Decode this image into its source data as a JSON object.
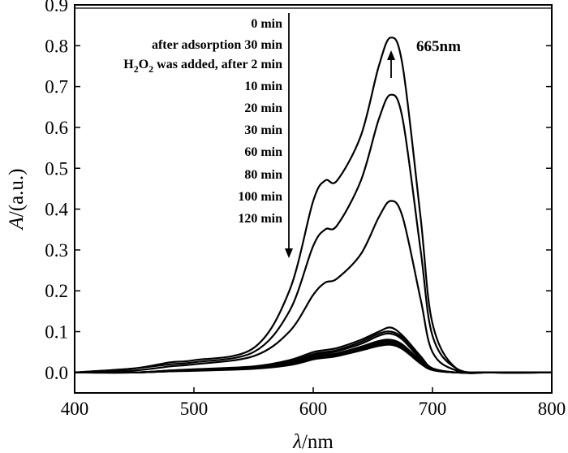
{
  "chart_data": {
    "type": "line",
    "xlabel": {
      "symbol": "λ",
      "unit": "/nm"
    },
    "ylabel": {
      "symbol": "A",
      "unit": "/(a.u.)"
    },
    "xlim": [
      400,
      800
    ],
    "ylim": [
      -0.05,
      0.9
    ],
    "x_ticks": [
      400,
      500,
      600,
      700,
      800
    ],
    "y_ticks": [
      0.0,
      0.1,
      0.2,
      0.3,
      0.4,
      0.5,
      0.6,
      0.7,
      0.8,
      0.9
    ],
    "grid": false,
    "legend_position": "top-left (inside plot, right-aligned text column)",
    "legend_entries": [
      "0 min",
      "after adsorption 30 min",
      "H2O2 was added, after 2 min",
      "10 min",
      "20 min",
      "30 min",
      "60 min",
      "80 min",
      "100 min",
      "120 min"
    ],
    "legend_arrow": "down",
    "annotation": {
      "text": "665nm",
      "x": 665,
      "arrow": "up"
    },
    "line_color": "#000000",
    "x": [
      400,
      450,
      480,
      500,
      550,
      580,
      600,
      610,
      620,
      640,
      655,
      665,
      675,
      690,
      700,
      720,
      750,
      800
    ],
    "series": [
      {
        "values": [
          0.0,
          0.01,
          0.025,
          0.03,
          0.06,
          0.2,
          0.42,
          0.47,
          0.47,
          0.58,
          0.75,
          0.82,
          0.75,
          0.38,
          0.12,
          0.01,
          0.0,
          0.0
        ]
      },
      {
        "values": [
          0.0,
          0.01,
          0.02,
          0.025,
          0.05,
          0.15,
          0.31,
          0.35,
          0.36,
          0.47,
          0.62,
          0.68,
          0.62,
          0.3,
          0.09,
          0.01,
          0.0,
          0.0
        ]
      },
      {
        "values": [
          0.0,
          0.005,
          0.015,
          0.02,
          0.04,
          0.1,
          0.19,
          0.22,
          0.23,
          0.29,
          0.38,
          0.42,
          0.38,
          0.18,
          0.05,
          0.005,
          0.0,
          0.0
        ]
      },
      {
        "values": [
          0.0,
          0.0,
          0.005,
          0.008,
          0.015,
          0.03,
          0.05,
          0.055,
          0.06,
          0.08,
          0.1,
          0.11,
          0.09,
          0.04,
          0.01,
          0.0,
          0.0,
          0.0
        ]
      },
      {
        "values": [
          0.0,
          0.0,
          0.005,
          0.007,
          0.013,
          0.026,
          0.045,
          0.05,
          0.055,
          0.075,
          0.095,
          0.1,
          0.085,
          0.035,
          0.01,
          0.0,
          0.0,
          0.0
        ]
      },
      {
        "values": [
          0.0,
          0.0,
          0.004,
          0.006,
          0.012,
          0.024,
          0.042,
          0.047,
          0.052,
          0.07,
          0.09,
          0.095,
          0.08,
          0.032,
          0.01,
          0.0,
          0.0,
          0.0
        ]
      },
      {
        "values": [
          0.0,
          0.0,
          0.004,
          0.006,
          0.011,
          0.022,
          0.038,
          0.043,
          0.047,
          0.063,
          0.077,
          0.08,
          0.068,
          0.028,
          0.008,
          0.0,
          0.0,
          0.0
        ]
      },
      {
        "values": [
          0.0,
          0.0,
          0.003,
          0.005,
          0.01,
          0.02,
          0.036,
          0.04,
          0.044,
          0.06,
          0.073,
          0.076,
          0.064,
          0.026,
          0.007,
          0.0,
          0.0,
          0.0
        ]
      },
      {
        "values": [
          0.0,
          0.0,
          0.003,
          0.005,
          0.01,
          0.019,
          0.034,
          0.038,
          0.042,
          0.057,
          0.069,
          0.072,
          0.06,
          0.024,
          0.006,
          0.0,
          0.0,
          0.0
        ]
      },
      {
        "values": [
          0.0,
          0.0,
          0.003,
          0.004,
          0.009,
          0.018,
          0.032,
          0.036,
          0.04,
          0.054,
          0.065,
          0.068,
          0.057,
          0.022,
          0.006,
          0.0,
          0.0,
          0.0
        ]
      }
    ]
  }
}
